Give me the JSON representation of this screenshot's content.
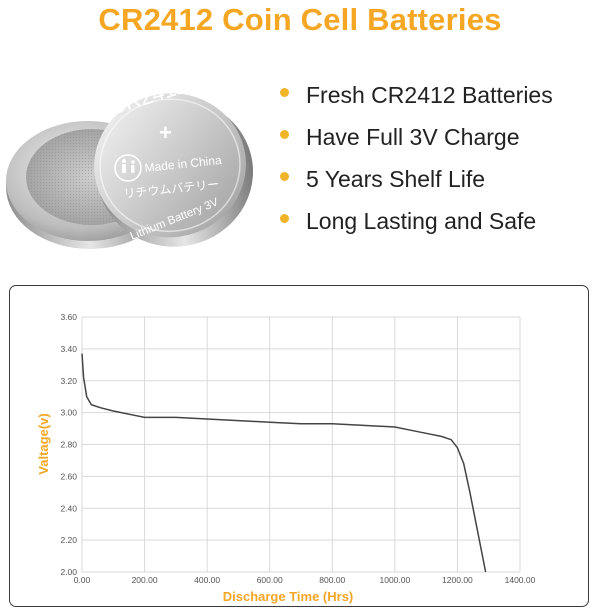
{
  "header": {
    "title": "CR2412  Coin Cell Batteries"
  },
  "colors": {
    "accent": "#f5a623",
    "bullet": "#f0b428",
    "line": "#444444",
    "grid": "#d9d9d9"
  },
  "coin": {
    "model": "CR2412",
    "plus": "+",
    "made_in": "Made in China",
    "katakana": "リチウムバテリー",
    "chemistry": "Lithium Battery 3V"
  },
  "features": [
    {
      "icon": "bullet-dot-icon",
      "text": "Fresh CR2412 Batteries"
    },
    {
      "icon": "bullet-dot-icon",
      "text": "Have Full 3V Charge"
    },
    {
      "icon": "bullet-dot-icon",
      "text": "5 Years Shelf Life"
    },
    {
      "icon": "bullet-dot-icon",
      "text": "Long Lasting and Safe"
    }
  ],
  "chart_data": {
    "type": "line",
    "title": "",
    "xlabel": "Discharge Time (Hrs)",
    "ylabel": "Valtage(v)",
    "xlim": [
      0,
      1400
    ],
    "ylim": [
      2.0,
      3.6
    ],
    "x_ticks": [
      "0.00",
      "200.00",
      "400.00",
      "600.00",
      "800.00",
      "1000.00",
      "1200.00",
      "1400.00"
    ],
    "y_ticks": [
      "2.00",
      "2.20",
      "2.40",
      "2.60",
      "2.80",
      "3.00",
      "3.20",
      "3.40",
      "3.60"
    ],
    "grid": true,
    "series": [
      {
        "x": [
          0,
          5,
          15,
          30,
          60,
          100,
          150,
          200,
          300,
          400,
          500,
          600,
          700,
          800,
          900,
          1000,
          1050,
          1100,
          1150,
          1180,
          1200,
          1220,
          1240,
          1260,
          1280,
          1290
        ],
        "y": [
          3.37,
          3.22,
          3.1,
          3.05,
          3.03,
          3.01,
          2.99,
          2.97,
          2.97,
          2.96,
          2.95,
          2.94,
          2.93,
          2.93,
          2.92,
          2.91,
          2.89,
          2.87,
          2.85,
          2.83,
          2.78,
          2.68,
          2.5,
          2.3,
          2.1,
          2.0
        ]
      }
    ]
  }
}
